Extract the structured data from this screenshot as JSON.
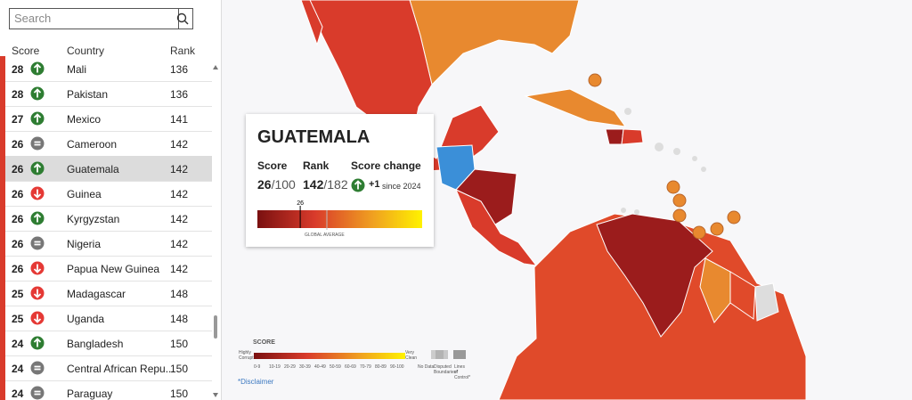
{
  "search": {
    "placeholder": "Search"
  },
  "table": {
    "headers": [
      "Score",
      "Country",
      "Rank"
    ],
    "rows": [
      {
        "score": 28,
        "change": "up",
        "country": "Mali",
        "rank": 136
      },
      {
        "score": 28,
        "change": "up",
        "country": "Pakistan",
        "rank": 136
      },
      {
        "score": 27,
        "change": "up",
        "country": "Mexico",
        "rank": 141
      },
      {
        "score": 26,
        "change": "same",
        "country": "Cameroon",
        "rank": 142
      },
      {
        "score": 26,
        "change": "up",
        "country": "Guatemala",
        "rank": 142,
        "selected": true
      },
      {
        "score": 26,
        "change": "down",
        "country": "Guinea",
        "rank": 142
      },
      {
        "score": 26,
        "change": "up",
        "country": "Kyrgyzstan",
        "rank": 142
      },
      {
        "score": 26,
        "change": "same",
        "country": "Nigeria",
        "rank": 142
      },
      {
        "score": 26,
        "change": "down",
        "country": "Papua New Guinea",
        "rank": 142
      },
      {
        "score": 25,
        "change": "down",
        "country": "Madagascar",
        "rank": 148
      },
      {
        "score": 25,
        "change": "down",
        "country": "Uganda",
        "rank": 148
      },
      {
        "score": 24,
        "change": "up",
        "country": "Bangladesh",
        "rank": 150
      },
      {
        "score": 24,
        "change": "same",
        "country": "Central African Repu...",
        "rank": 150
      },
      {
        "score": 24,
        "change": "same",
        "country": "Paraguay",
        "rank": 150
      }
    ]
  },
  "popup": {
    "title": "GUATEMALA",
    "score_label": "Score",
    "score": 26,
    "score_max": "/100",
    "rank_label": "Rank",
    "rank": 142,
    "rank_max": "/182",
    "change_label": "Score change",
    "change": "+1",
    "change_since": "since 2024",
    "global_average_label": "GLOBAL AVERAGE"
  },
  "legend": {
    "title": "SCORE",
    "low": "Highly Corrupt",
    "high": "Very Clean",
    "ranges": [
      "0-9",
      "10-19",
      "20-29",
      "30-39",
      "40-49",
      "50-59",
      "60-69",
      "70-79",
      "80-89",
      "90-100"
    ],
    "no_data": "No Data",
    "disputed": "Disputed Boundaries*",
    "lines": "Lines of Control*"
  },
  "disclaimer": "*Disclaimer"
}
